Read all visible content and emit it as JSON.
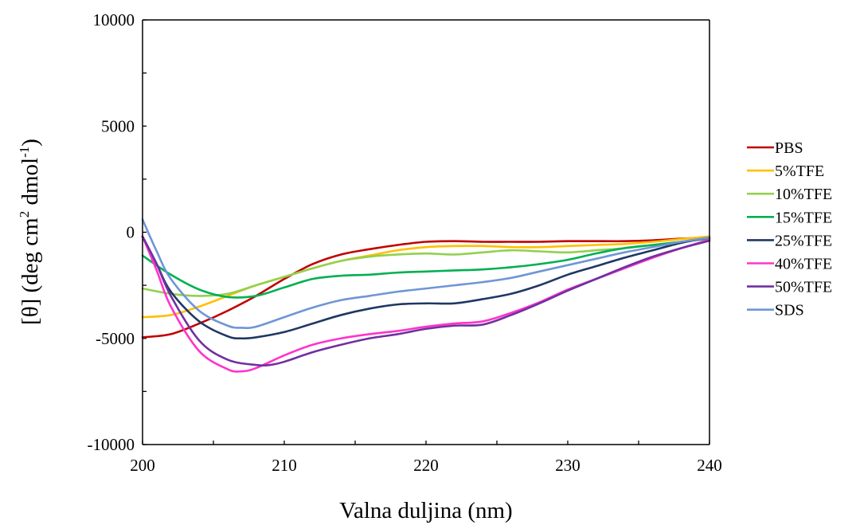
{
  "chart_data": {
    "type": "line",
    "xlabel": "Valna duljina (nm)",
    "ylabel_parts": [
      "[θ] (deg cm",
      "2",
      " dmol",
      "-1",
      ")"
    ],
    "xlim": [
      200,
      240
    ],
    "ylim": [
      -10000,
      10000
    ],
    "xticks": [
      "200",
      "210",
      "220",
      "230",
      "240"
    ],
    "yticks": [
      "-10000",
      "-5000",
      "0",
      "5000",
      "10000"
    ],
    "grid": false,
    "legend_position": "right",
    "series": [
      {
        "name": "PBS",
        "color": "#c00000",
        "x": [
          200,
          202,
          204,
          206,
          208,
          210,
          212,
          214,
          216,
          218,
          220,
          222,
          224,
          226,
          228,
          230,
          232,
          234,
          236,
          238,
          240
        ],
        "y": [
          -4950,
          -4800,
          -4300,
          -3700,
          -3000,
          -2200,
          -1500,
          -1050,
          -800,
          -600,
          -450,
          -420,
          -450,
          -450,
          -450,
          -420,
          -420,
          -420,
          -380,
          -300,
          -250
        ]
      },
      {
        "name": "5%TFE",
        "color": "#ffc000",
        "x": [
          200,
          202,
          204,
          206,
          208,
          210,
          212,
          214,
          216,
          218,
          220,
          222,
          224,
          226,
          228,
          230,
          232,
          234,
          236,
          238,
          240
        ],
        "y": [
          -4000,
          -3900,
          -3500,
          -3000,
          -2500,
          -2100,
          -1700,
          -1350,
          -1100,
          -850,
          -700,
          -650,
          -650,
          -700,
          -700,
          -650,
          -600,
          -550,
          -450,
          -320,
          -200
        ]
      },
      {
        "name": "10%TFE",
        "color": "#92d050",
        "x": [
          200,
          202,
          204,
          206,
          208,
          210,
          212,
          214,
          216,
          218,
          220,
          222,
          224,
          226,
          228,
          230,
          232,
          234,
          236,
          238,
          240
        ],
        "y": [
          -2650,
          -2900,
          -3000,
          -2900,
          -2500,
          -2100,
          -1700,
          -1350,
          -1150,
          -1050,
          -1000,
          -1050,
          -950,
          -850,
          -900,
          -950,
          -850,
          -750,
          -600,
          -450,
          -300
        ]
      },
      {
        "name": "15%TFE",
        "color": "#00b050",
        "x": [
          200,
          202,
          204,
          206,
          208,
          210,
          212,
          214,
          216,
          218,
          220,
          222,
          224,
          226,
          228,
          230,
          232,
          234,
          236,
          238,
          240
        ],
        "y": [
          -1100,
          -2000,
          -2700,
          -3050,
          -3000,
          -2600,
          -2200,
          -2050,
          -2000,
          -1900,
          -1850,
          -1800,
          -1750,
          -1650,
          -1500,
          -1300,
          -1000,
          -750,
          -600,
          -450,
          -300
        ]
      },
      {
        "name": "25%TFE",
        "color": "#1f3864",
        "x": [
          200,
          201,
          202,
          204,
          206,
          207,
          208,
          210,
          212,
          214,
          216,
          218,
          220,
          222,
          224,
          226,
          228,
          230,
          232,
          234,
          236,
          238,
          240
        ],
        "y": [
          -200,
          -1500,
          -2800,
          -4200,
          -4900,
          -5000,
          -4950,
          -4700,
          -4300,
          -3900,
          -3600,
          -3400,
          -3350,
          -3350,
          -3150,
          -2900,
          -2500,
          -2000,
          -1600,
          -1200,
          -850,
          -500,
          -250
        ]
      },
      {
        "name": "40%TFE",
        "color": "#ff33cc",
        "x": [
          200,
          201,
          202,
          204,
          206,
          207,
          208,
          210,
          212,
          214,
          216,
          218,
          220,
          222,
          224,
          226,
          228,
          230,
          232,
          234,
          236,
          238,
          240
        ],
        "y": [
          -200,
          -1800,
          -3500,
          -5600,
          -6450,
          -6550,
          -6400,
          -5800,
          -5300,
          -5000,
          -4800,
          -4650,
          -4450,
          -4300,
          -4200,
          -3800,
          -3300,
          -2700,
          -2200,
          -1700,
          -1200,
          -750,
          -350
        ]
      },
      {
        "name": "50%TFE",
        "color": "#7030a0",
        "x": [
          200,
          201,
          202,
          204,
          206,
          208,
          209,
          210,
          212,
          214,
          216,
          218,
          220,
          222,
          224,
          226,
          228,
          230,
          232,
          234,
          236,
          238,
          240
        ],
        "y": [
          -200,
          -1500,
          -3000,
          -5100,
          -6000,
          -6250,
          -6250,
          -6100,
          -5650,
          -5300,
          -5000,
          -4800,
          -4550,
          -4400,
          -4350,
          -3900,
          -3350,
          -2750,
          -2200,
          -1650,
          -1150,
          -750,
          -400
        ]
      },
      {
        "name": "SDS",
        "color": "#6f96d6",
        "x": [
          200,
          201,
          202,
          204,
          206,
          207,
          208,
          210,
          212,
          214,
          216,
          218,
          220,
          222,
          224,
          226,
          228,
          230,
          232,
          234,
          236,
          238,
          240
        ],
        "y": [
          600,
          -900,
          -2200,
          -3700,
          -4400,
          -4500,
          -4450,
          -4000,
          -3550,
          -3200,
          -3000,
          -2800,
          -2650,
          -2500,
          -2350,
          -2150,
          -1850,
          -1550,
          -1250,
          -950,
          -700,
          -450,
          -250
        ]
      }
    ]
  }
}
